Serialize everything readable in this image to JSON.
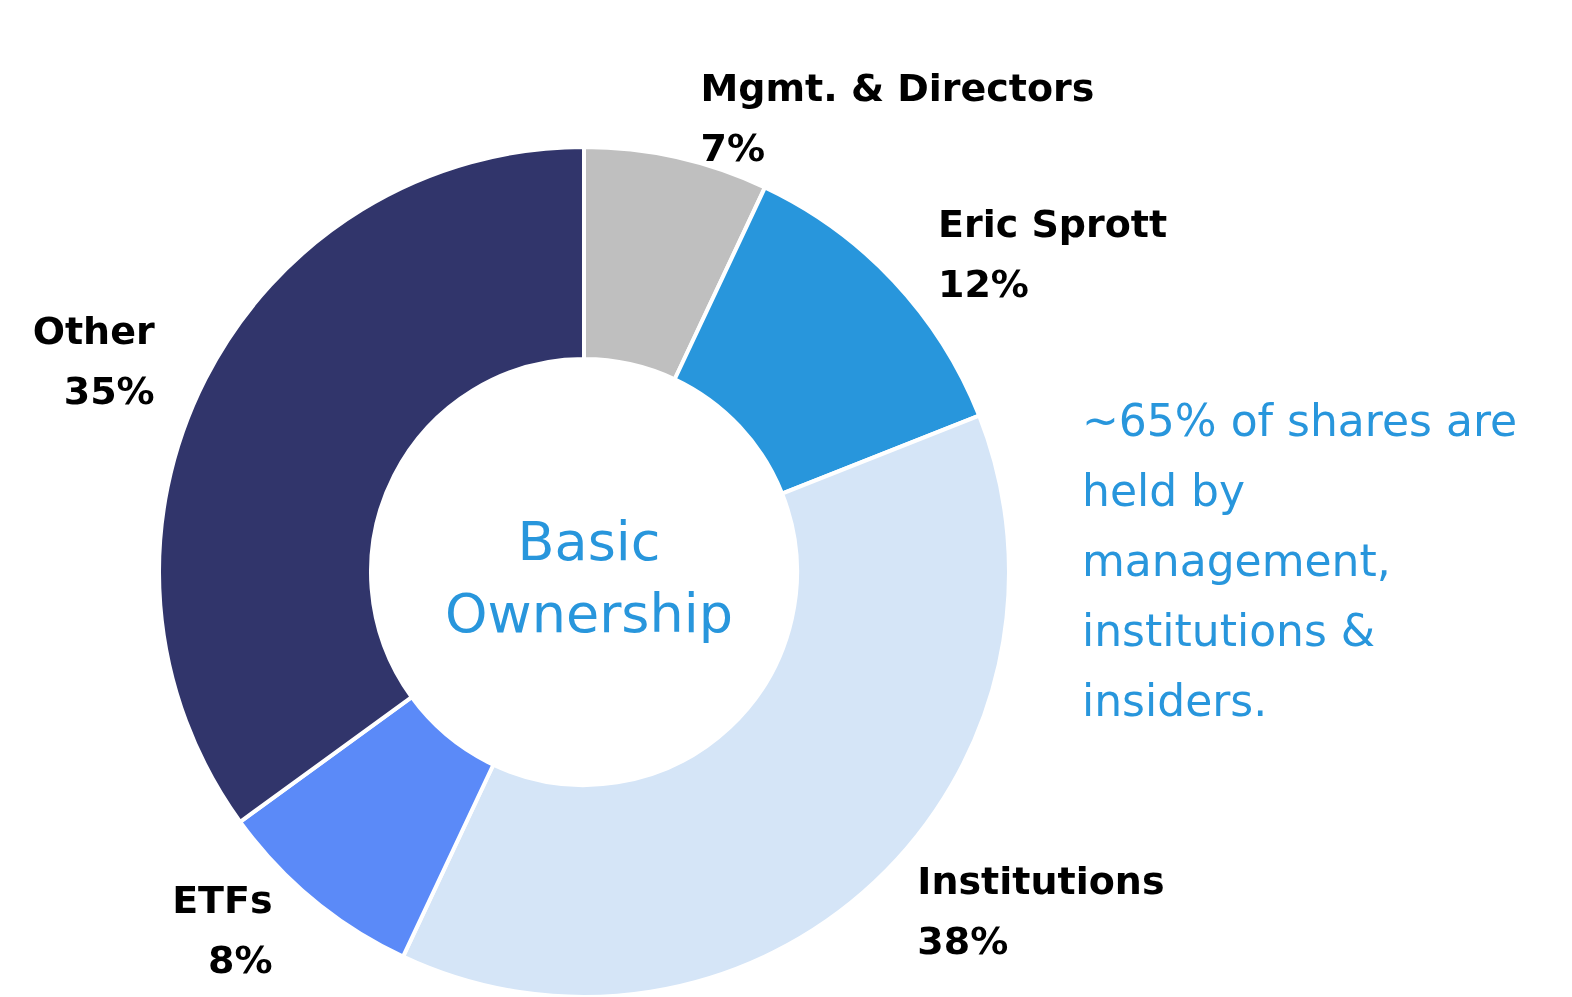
{
  "chart_data": {
    "type": "donut",
    "title": "Basic Ownership",
    "categories": [
      "Mgmt. & Directors",
      "Eric Sprott",
      "Institutions",
      "ETFs",
      "Other"
    ],
    "values": [
      7,
      12,
      38,
      8,
      35
    ],
    "colors": [
      "#bfbfbf",
      "#2896dc",
      "#d5e5f7",
      "#5b8af8",
      "#31356b"
    ],
    "value_labels": [
      "7%",
      "12%",
      "38%",
      "8%",
      "35%"
    ],
    "annotations": [
      "~65% of shares are held by management, institutions & insiders."
    ]
  }
}
